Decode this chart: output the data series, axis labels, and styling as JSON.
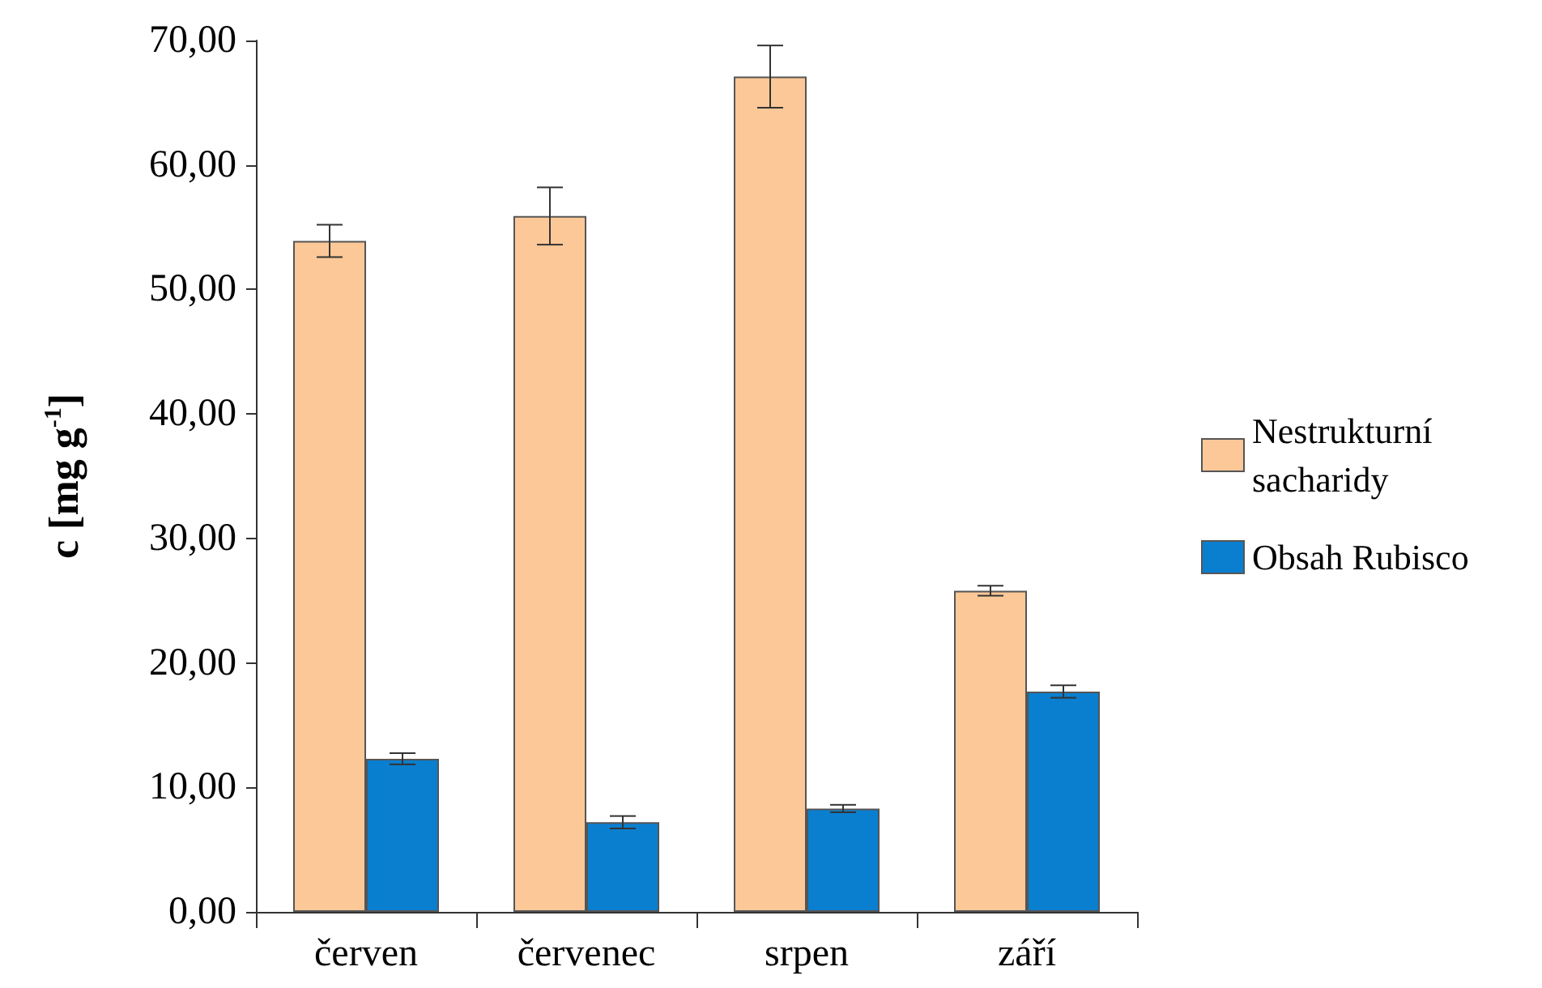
{
  "chart_data": {
    "type": "bar",
    "ylabel": "c [mg g$^{-1}$]",
    "categories": [
      "červen",
      "červenec",
      "srpen",
      "září"
    ],
    "series": [
      {
        "name": "Nestrukturní sacharidy",
        "color": "#fdc898",
        "values": [
          53.9,
          55.9,
          67.1,
          25.8
        ],
        "errors": [
          1.3,
          2.3,
          2.5,
          0.4
        ]
      },
      {
        "name": "Obsah Rubisco",
        "color": "#0a7fd0",
        "values": [
          12.3,
          7.2,
          8.3,
          17.7
        ],
        "errors": [
          0.45,
          0.5,
          0.3,
          0.5
        ]
      }
    ],
    "ylim": [
      0,
      70
    ],
    "yticks": [
      {
        "value": 0,
        "label": "0,00"
      },
      {
        "value": 10,
        "label": "10,00"
      },
      {
        "value": 20,
        "label": "20,00"
      },
      {
        "value": 30,
        "label": "30,00"
      },
      {
        "value": 40,
        "label": "40,00"
      },
      {
        "value": 50,
        "label": "50,00"
      },
      {
        "value": 60,
        "label": "60,00"
      },
      {
        "value": 70,
        "label": "70,00"
      }
    ],
    "grid": false,
    "legend": "right"
  }
}
